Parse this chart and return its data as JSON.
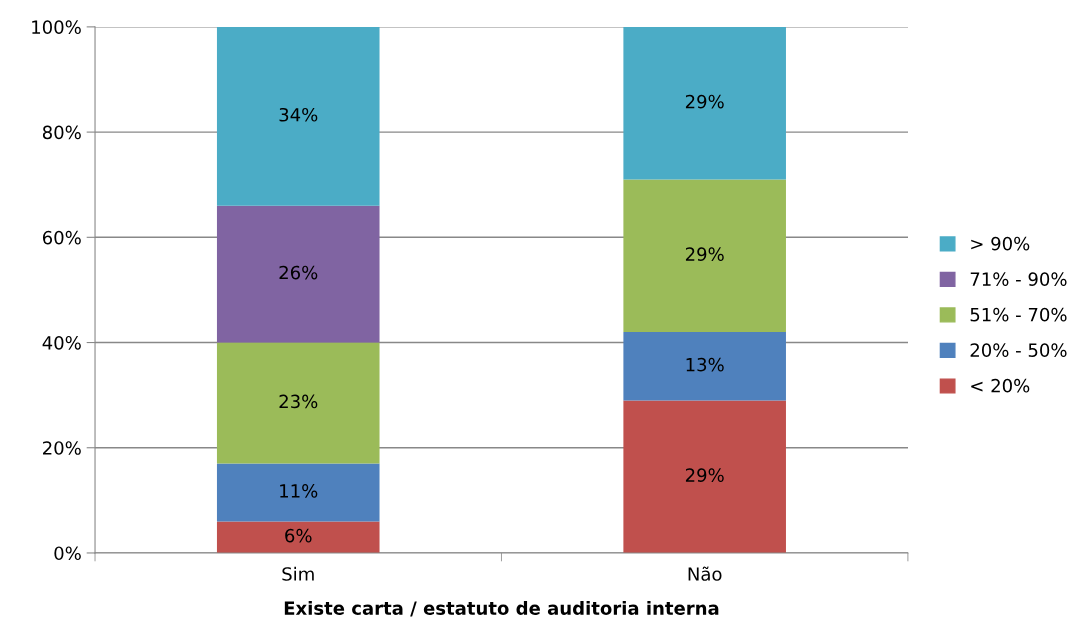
{
  "chart_data": {
    "type": "bar",
    "stacked": true,
    "xlabel": "Existe carta / estatuto de auditoria interna",
    "categories": [
      "Sim",
      "Não"
    ],
    "series": [
      {
        "name": "< 20%",
        "color": "#c0504d",
        "values": [
          6,
          29
        ],
        "value_labels": [
          "6%",
          "29%"
        ]
      },
      {
        "name": "20% - 50%",
        "color": "#4f81bd",
        "values": [
          11,
          13
        ],
        "value_labels": [
          "11%",
          "13%"
        ]
      },
      {
        "name": "51% - 70%",
        "color": "#9bbb59",
        "values": [
          23,
          29
        ],
        "value_labels": [
          "23%",
          "29%"
        ]
      },
      {
        "name": "71% - 90%",
        "color": "#8064a2",
        "values": [
          26,
          null
        ],
        "value_labels": [
          "26%",
          null
        ]
      },
      {
        "name": "> 90%",
        "color": "#4bacc6",
        "values": [
          34,
          29
        ],
        "value_labels": [
          "34%",
          "29%"
        ]
      }
    ],
    "ylim": [
      0,
      100
    ],
    "yticks": [
      {
        "value": 0,
        "label": "0%"
      },
      {
        "value": 20,
        "label": "20%"
      },
      {
        "value": 40,
        "label": "40%"
      },
      {
        "value": 60,
        "label": "60%"
      },
      {
        "value": 80,
        "label": "80%"
      },
      {
        "value": 100,
        "label": "100%"
      }
    ],
    "grid": "y",
    "legend": "right"
  }
}
